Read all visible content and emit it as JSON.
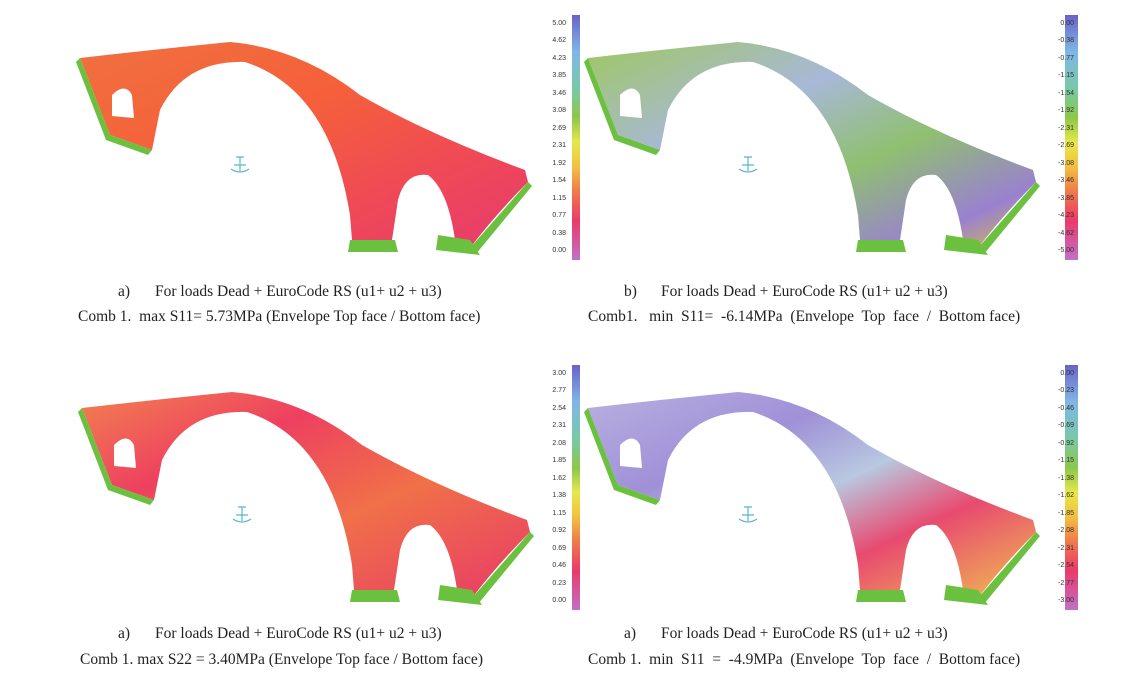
{
  "panels": [
    {
      "legend": [
        "5.00",
        "4.62",
        "4.23",
        "3.85",
        "3.46",
        "3.08",
        "2.69",
        "2.31",
        "1.92",
        "1.54",
        "1.15",
        "0.77",
        "0.38",
        "0.00"
      ],
      "caption_tag": "a)",
      "caption_line1": "For loads Dead + EuroCode RS (u1+ u2 + u3)",
      "caption_line2": "Comb 1.  max S11= 5.73MPa (Envelope Top face / Bottom face)"
    },
    {
      "legend": [
        "0.00",
        "-0.38",
        "-0.77",
        "-1.15",
        "-1.54",
        "-1.92",
        "-2.31",
        "-2.69",
        "-3.08",
        "-3.46",
        "-3.85",
        "-4.23",
        "-4.62",
        "-5.00"
      ],
      "caption_tag": "b)",
      "caption_line1": "For loads Dead + EuroCode RS (u1+ u2 + u3)",
      "caption_line2": "Comb1.   min  S11=  -6.14MPa  (Envelope  Top  face  /  Bottom face)"
    },
    {
      "legend": [
        "3.00",
        "2.77",
        "2.54",
        "2.31",
        "2.08",
        "1.85",
        "1.62",
        "1.38",
        "1.15",
        "0.92",
        "0.69",
        "0.46",
        "0.23",
        "0.00"
      ],
      "caption_tag": "a)",
      "caption_line1": "For loads Dead + EuroCode RS (u1+ u2 + u3)",
      "caption_line2": "Comb 1. max S22 = 3.40MPa (Envelope Top face / Bottom face)"
    },
    {
      "legend": [
        "0.00",
        "-0.23",
        "-0.46",
        "-0.69",
        "-0.92",
        "-1.15",
        "-1.38",
        "-1.62",
        "-1.85",
        "-2.08",
        "-2.31",
        "-2.54",
        "-2.77",
        "-3.00"
      ],
      "caption_tag": "a)",
      "caption_line1": "For loads Dead + EuroCode RS (u1+ u2 + u3)",
      "caption_line2": "Comb 1.  min  S11  =  -4.9MPa  (Envelope  Top  face  /  Bottom face)"
    }
  ]
}
